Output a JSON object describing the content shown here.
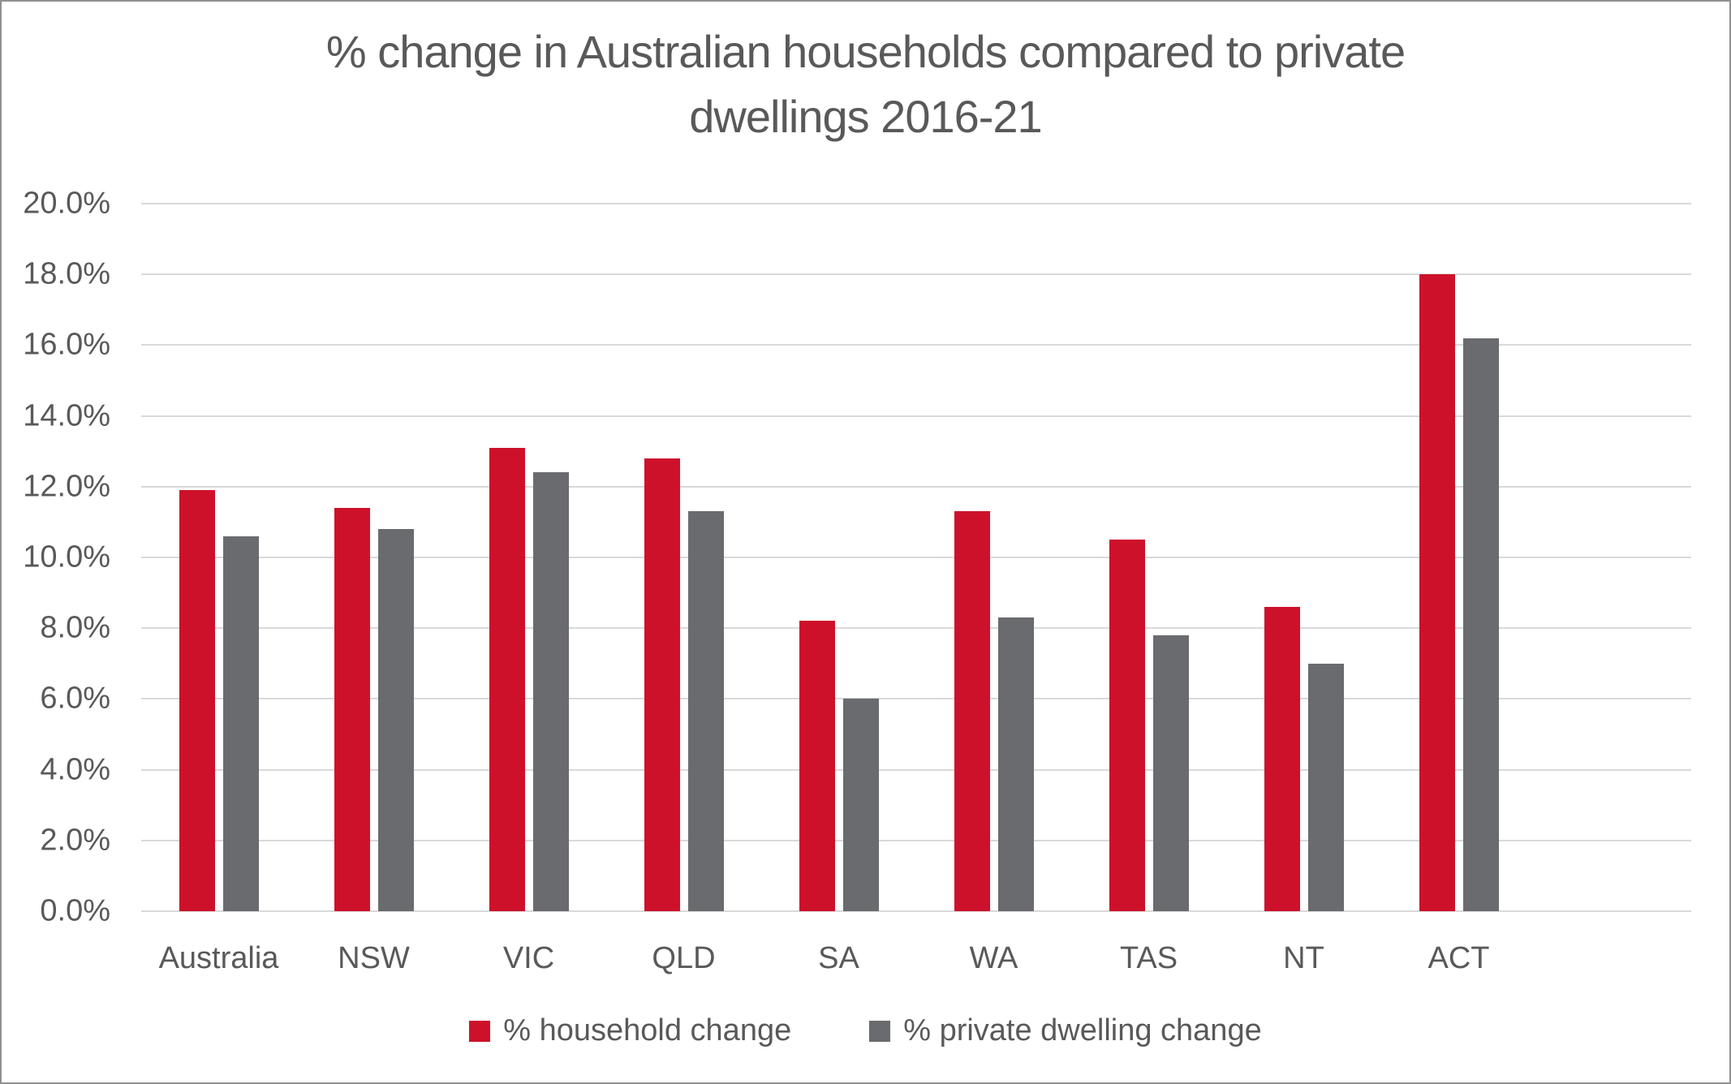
{
  "page": {
    "background": "#FFFFFF",
    "frame_border_color": "#909090"
  },
  "chart_data": {
    "type": "bar",
    "title": "% change in Australian households compared to private dwellings 2016-21",
    "title_lines": {
      "line1": "% change in Australian households compared to private",
      "line2": "dwellings 2016-21"
    },
    "categories": [
      "Australia",
      "NSW",
      "VIC",
      "QLD",
      "SA",
      "WA",
      "TAS",
      "NT",
      "ACT"
    ],
    "series": [
      {
        "name": "% household change",
        "color": "#CE112B",
        "values": [
          11.9,
          11.4,
          13.1,
          12.8,
          8.2,
          11.3,
          10.5,
          8.6,
          18.0
        ]
      },
      {
        "name": "% private dwelling change",
        "color": "#6A6B6E",
        "values": [
          10.6,
          10.8,
          12.4,
          11.3,
          6.0,
          8.3,
          7.8,
          7.0,
          16.2
        ]
      }
    ],
    "xlabel": "",
    "ylabel": "",
    "ylim": [
      0,
      20
    ],
    "ytick_step": 2,
    "ytick_labels": [
      "0.0%",
      "2.0%",
      "4.0%",
      "6.0%",
      "8.0%",
      "10.0%",
      "12.0%",
      "14.0%",
      "16.0%",
      "18.0%",
      "20.0%"
    ],
    "grid": true,
    "gridline_color": "#D9D9D9",
    "axis_text_color": "#595959",
    "legend_position": "bottom",
    "empty_trailing_category_slots": 1
  }
}
